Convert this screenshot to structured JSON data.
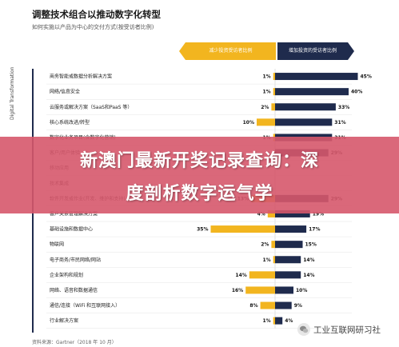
{
  "title": "调整技术组合以推动数字化转型",
  "subtitle": "如何实施以产品为中心的交付方式(按受访者比例)",
  "header": {
    "decrease_label": "减少投资受访者比例",
    "increase_label": "增加投资的受访者比例"
  },
  "side_label": "Digital Transformation",
  "source": "资料来源：Gartner（2018 年 10 月）",
  "banner": {
    "line1": "新澳门最新开奖记录查询：深",
    "line2": "度剖析数字运气学"
  },
  "watermark": {
    "text": "工业互联网研习社",
    "icon": "wechat-icon"
  },
  "colors": {
    "decrease": "#f2b51f",
    "increase": "#1f2b4d",
    "banner": "#d6586b"
  },
  "chart_data": {
    "type": "bar",
    "orientation": "horizontal-diverging",
    "categories": [
      "商务智能或数据分析解决方案",
      "网络/信息安全",
      "云服务或解决方案（SaaS和PaaS 等）",
      "核心系统改进/转型",
      "数字化业务项目(含数字化营销)",
      "客户/用户体验",
      "移动应用",
      "技术集成",
      "软件开发或作业(开发、维护和支持)",
      "客户关系管理解决方案",
      "基础设施和数据中心",
      "物联网",
      "电子商务/市民网络/网站",
      "企业架构和规划",
      "网络、语音和数据通信",
      "通信/连接（WiFi 和互联网接入）",
      "行业解决方案"
    ],
    "series": [
      {
        "name": "减少投资受访者比例",
        "values": [
          1,
          1,
          2,
          10,
          1,
          null,
          null,
          null,
          13,
          4,
          35,
          2,
          1,
          14,
          16,
          8,
          1
        ]
      },
      {
        "name": "增加投资的受访者比例",
        "values": [
          45,
          40,
          33,
          31,
          31,
          29,
          null,
          null,
          29,
          19,
          17,
          15,
          14,
          14,
          10,
          9,
          4
        ]
      }
    ],
    "decrease_labels": [
      "1%",
      "1%",
      "2%",
      "10%",
      "1%",
      "",
      "",
      "",
      "13%",
      "4%",
      "35%",
      "2%",
      "1%",
      "14%",
      "16%",
      "8%",
      "1%"
    ],
    "increase_labels": [
      "45%",
      "40%",
      "33%",
      "31%",
      "31%",
      "29%",
      "",
      "",
      "29%",
      "19%",
      "17%",
      "15%",
      "14%",
      "14%",
      "10%",
      "9%",
      "4%"
    ],
    "xlim": [
      0,
      45
    ]
  }
}
